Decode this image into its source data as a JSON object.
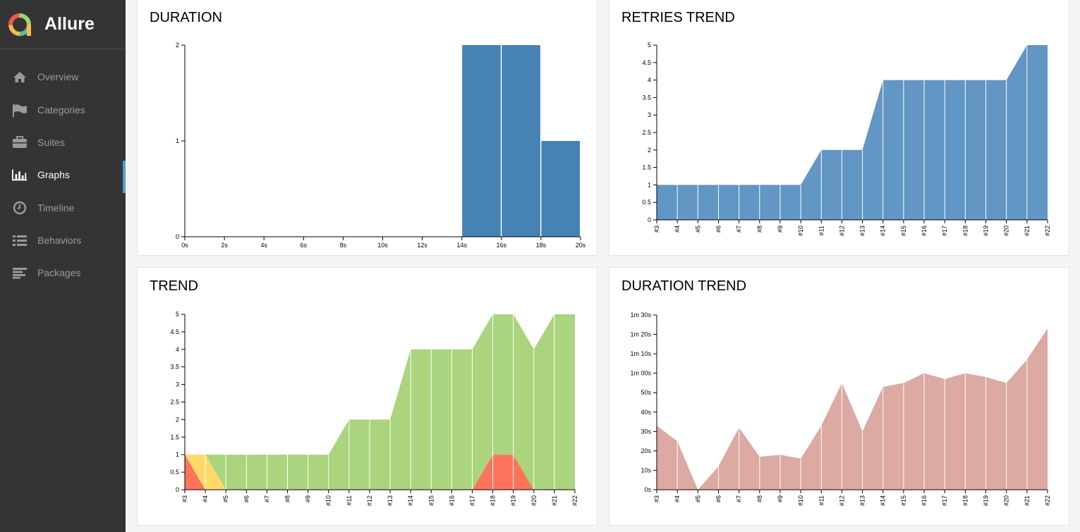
{
  "app": {
    "name": "Allure"
  },
  "sidebar": {
    "items": [
      {
        "label": "Overview",
        "icon": "home-icon"
      },
      {
        "label": "Categories",
        "icon": "flag-icon"
      },
      {
        "label": "Suites",
        "icon": "briefcase-icon"
      },
      {
        "label": "Graphs",
        "icon": "bar-chart-icon",
        "active": true
      },
      {
        "label": "Timeline",
        "icon": "clock-icon"
      },
      {
        "label": "Behaviors",
        "icon": "list-icon"
      },
      {
        "label": "Packages",
        "icon": "align-left-icon"
      }
    ]
  },
  "colors": {
    "sidebar_bg": "#343434",
    "active_accent": "#4b9fd5",
    "duration_bar": "#4682b4",
    "retries_area": "#6296c4",
    "trend_passed": "#aad47d",
    "trend_failed": "#fd745a",
    "trend_broken": "#ffd966",
    "duration_trend_area": "#dca9a3"
  },
  "chart_data": [
    {
      "type": "bar",
      "title": "DURATION",
      "x_ticks": [
        "0s",
        "2s",
        "4s",
        "6s",
        "8s",
        "10s",
        "12s",
        "14s",
        "16s",
        "18s",
        "20s"
      ],
      "y_ticks": [
        "0",
        "1",
        "2"
      ],
      "xlim": [
        0,
        20
      ],
      "ylim": [
        0,
        2
      ],
      "bins": [
        {
          "x0": 14,
          "x1": 16,
          "value": 2
        },
        {
          "x0": 16,
          "x1": 18,
          "value": 2
        },
        {
          "x0": 18,
          "x1": 20,
          "value": 1
        }
      ]
    },
    {
      "type": "area",
      "title": "RETRIES TREND",
      "categories": [
        "#3",
        "#4",
        "#5",
        "#6",
        "#7",
        "#8",
        "#9",
        "#10",
        "#11",
        "#12",
        "#13",
        "#14",
        "#15",
        "#16",
        "#17",
        "#18",
        "#19",
        "#20",
        "#21",
        "#22"
      ],
      "y_ticks": [
        "0",
        "0.5",
        "1",
        "1.5",
        "2",
        "2.5",
        "3",
        "3.5",
        "4",
        "4.5",
        "5"
      ],
      "ylim": [
        0,
        5
      ],
      "values": [
        1,
        1,
        1,
        1,
        1,
        1,
        1,
        1,
        2,
        2,
        2,
        4,
        4,
        4,
        4,
        4,
        4,
        4,
        5,
        5
      ]
    },
    {
      "type": "area",
      "title": "TREND",
      "categories": [
        "#3",
        "#4",
        "#5",
        "#6",
        "#7",
        "#8",
        "#9",
        "#10",
        "#11",
        "#12",
        "#13",
        "#14",
        "#15",
        "#16",
        "#17",
        "#18",
        "#19",
        "#20",
        "#21",
        "#22"
      ],
      "y_ticks": [
        "0",
        "0.5",
        "1",
        "1.5",
        "2",
        "2.5",
        "3",
        "3.5",
        "4",
        "4.5",
        "5"
      ],
      "ylim": [
        0,
        5
      ],
      "series": [
        {
          "values": [
            1,
            0,
            0,
            0,
            0,
            0,
            0,
            0,
            0,
            0,
            0,
            0,
            0,
            0,
            0,
            1,
            1,
            0,
            0,
            0
          ]
        },
        {
          "values": [
            0,
            1,
            0,
            0,
            0,
            0,
            0,
            0,
            0,
            0,
            0,
            0,
            0,
            0,
            0,
            0,
            0,
            0,
            0,
            0
          ]
        },
        {
          "values": [
            0,
            0,
            1,
            1,
            1,
            1,
            1,
            1,
            2,
            2,
            2,
            4,
            4,
            4,
            4,
            4,
            4,
            4,
            5,
            5
          ]
        }
      ]
    },
    {
      "type": "area",
      "title": "DURATION TREND",
      "categories": [
        "#3",
        "#4",
        "#5",
        "#6",
        "#7",
        "#8",
        "#9",
        "#10",
        "#11",
        "#12",
        "#13",
        "#14",
        "#15",
        "#16",
        "#17",
        "#18",
        "#19",
        "#20",
        "#21",
        "#22"
      ],
      "y_ticks": [
        "0s",
        "10s",
        "20s",
        "30s",
        "40s",
        "50s",
        "1m 00s",
        "1m 10s",
        "1m 20s",
        "1m 30s"
      ],
      "ylim": [
        0,
        90
      ],
      "values": [
        33,
        25,
        0,
        12,
        32,
        17,
        18,
        16,
        33,
        55,
        30,
        53,
        55,
        60,
        57,
        60,
        58,
        55,
        67,
        83
      ]
    }
  ]
}
